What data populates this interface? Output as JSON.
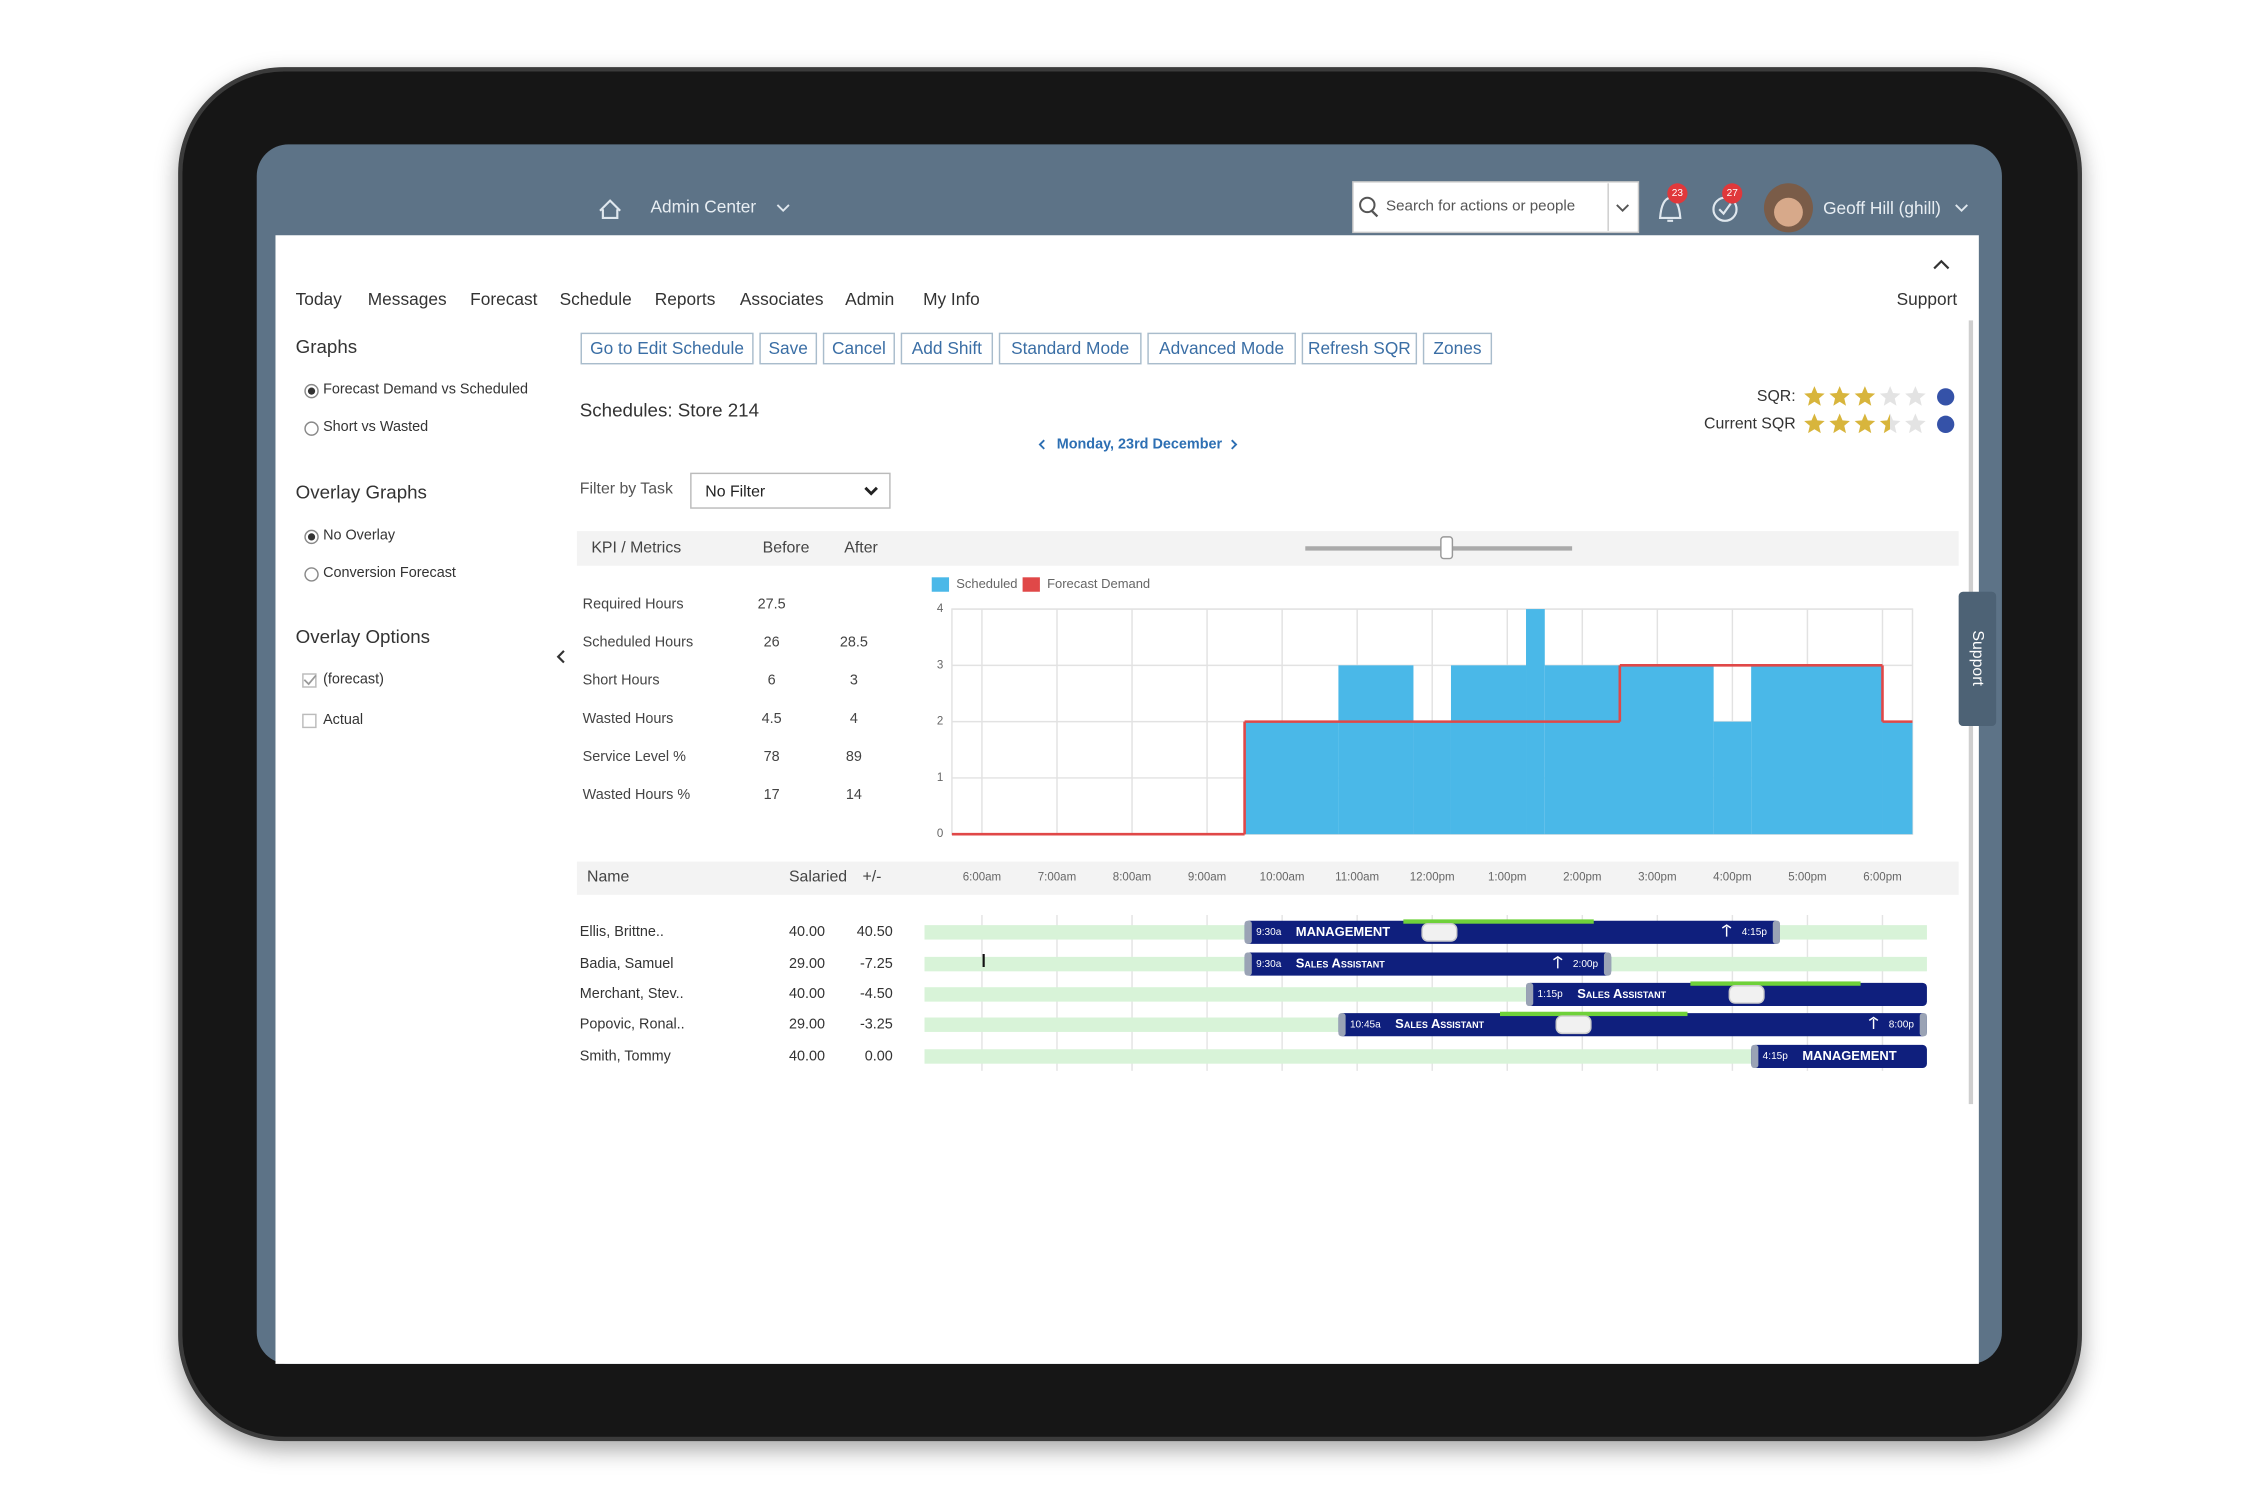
{
  "header": {
    "menu": "Admin Center",
    "search_placeholder": "Search for actions or people",
    "notifications": "23",
    "tasks": "27",
    "user": "Geoff Hill (ghill)"
  },
  "nav": {
    "items": [
      "Today",
      "Messages",
      "Forecast",
      "Schedule",
      "Reports",
      "Associates",
      "Admin",
      "My Info"
    ],
    "support": "Support"
  },
  "sidebar": {
    "graphs_title": "Graphs",
    "graphs": [
      "Forecast Demand vs Scheduled",
      "Short vs Wasted"
    ],
    "overlay_title": "Overlay Graphs",
    "overlays": [
      "No Overlay",
      "Conversion Forecast"
    ],
    "options_title": "Overlay Options",
    "options": [
      "(forecast)",
      "Actual"
    ]
  },
  "toolbar": [
    "Go to Edit Schedule",
    "Save",
    "Cancel",
    "Add Shift",
    "Standard Mode",
    "Advanced Mode",
    "Refresh SQR",
    "Zones"
  ],
  "schedule": {
    "title": "Schedules: Store 214",
    "date": "Monday, 23rd December",
    "sqr_label": "SQR:",
    "sqr_stars": 3,
    "current_sqr_label": "Current SQR",
    "current_sqr_stars": 3.5,
    "filter_label": "Filter by Task",
    "filter_value": "No Filter"
  },
  "kpi": {
    "headers": [
      "KPI / Metrics",
      "Before",
      "After"
    ],
    "rows": [
      {
        "name": "Required Hours",
        "before": 27.5,
        "after": null
      },
      {
        "name": "Scheduled Hours",
        "before": 26,
        "after": 28.5
      },
      {
        "name": "Short Hours",
        "before": 6,
        "after": 3
      },
      {
        "name": "Wasted Hours",
        "before": 4.5,
        "after": 4
      },
      {
        "name": "Service Level %",
        "before": 78,
        "after": 89
      },
      {
        "name": "Wasted Hours %",
        "before": 17,
        "after": 14
      }
    ]
  },
  "chart_data": {
    "type": "step",
    "xlim": [
      5.6,
      18.4
    ],
    "xticks": [
      {
        "value": 6,
        "label": "6:00am"
      },
      {
        "value": 7,
        "label": "7:00am"
      },
      {
        "value": 8,
        "label": "8:00am"
      },
      {
        "value": 9,
        "label": "9:00am"
      },
      {
        "value": 10,
        "label": "10:00am"
      },
      {
        "value": 11,
        "label": "11:00am"
      },
      {
        "value": 12,
        "label": "12:00pm"
      },
      {
        "value": 13,
        "label": "1:00pm"
      },
      {
        "value": 14,
        "label": "2:00pm"
      },
      {
        "value": 15,
        "label": "3:00pm"
      },
      {
        "value": 16,
        "label": "4:00pm"
      },
      {
        "value": 17,
        "label": "5:00pm"
      },
      {
        "value": 18,
        "label": "6:00pm"
      }
    ],
    "ylim": [
      0,
      4
    ],
    "yticks": [
      0,
      1,
      2,
      3,
      4
    ],
    "grid": true,
    "series": [
      {
        "name": "Scheduled",
        "color": "#4ab8e8",
        "style": "area",
        "x": [
          9.5,
          10.75,
          11.75,
          12.25,
          13.25,
          13.5,
          15.75,
          16.25,
          18
        ],
        "values": [
          2,
          3,
          2,
          3,
          4,
          3,
          2,
          3,
          2
        ]
      },
      {
        "name": "Forecast Demand",
        "color": "#e04848",
        "style": "line",
        "x": [
          5.6,
          9.5,
          14.5,
          18
        ],
        "values": [
          0,
          2,
          3,
          2
        ]
      }
    ]
  },
  "roster": {
    "headers": [
      "Name",
      "Salaried",
      "+/-"
    ],
    "rows": [
      {
        "name": "Ellis, Brittne..",
        "salaried": "40.00",
        "diff": "40.50",
        "shift": {
          "start": "9:30a",
          "role": "MANAGEMENT",
          "end": "4:15p"
        }
      },
      {
        "name": "Badia, Samuel",
        "salaried": "29.00",
        "diff": "-7.25",
        "shift": {
          "start": "9:30a",
          "role": "Sales Assistant",
          "end": "2:00p"
        }
      },
      {
        "name": "Merchant, Stev..",
        "salaried": "40.00",
        "diff": "-4.50",
        "shift": {
          "start": "1:15p",
          "role": "Sales Assistant"
        }
      },
      {
        "name": "Popovic, Ronal..",
        "salaried": "29.00",
        "diff": "-3.25",
        "shift": {
          "start": "10:45a",
          "role": "Sales Assistant",
          "end": "8:00p"
        }
      },
      {
        "name": "Smith, Tommy",
        "salaried": "40.00",
        "diff": "0.00",
        "shift": {
          "start": "4:15p",
          "role": "MANAGEMENT"
        }
      }
    ]
  },
  "side_tab": "Support"
}
